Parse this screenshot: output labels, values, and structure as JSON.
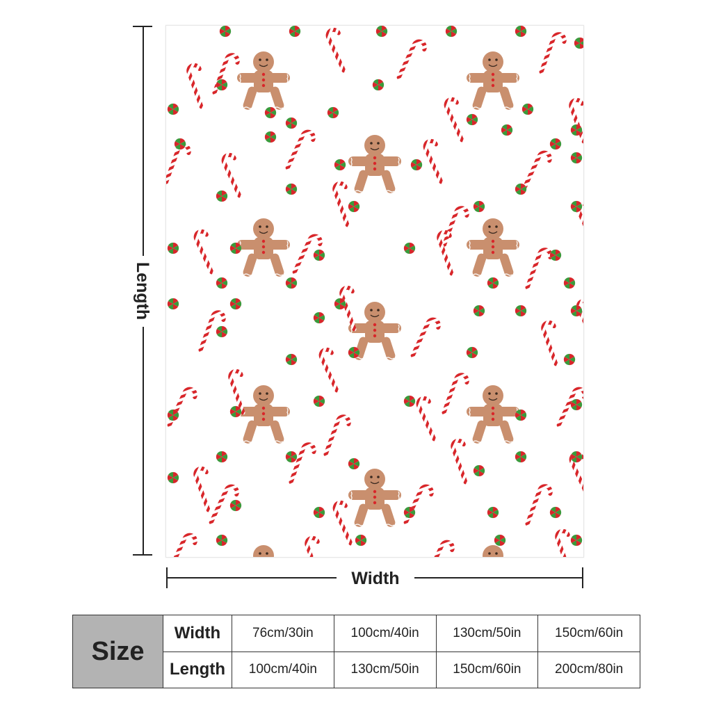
{
  "product": {
    "pattern_name": "gingerbread-candy-cane-pattern",
    "colors": {
      "cookie": "#c98f6e",
      "cane_red": "#d8262a",
      "mint_green": "#3a9a3a",
      "background": "#ffffff"
    }
  },
  "dimensions": {
    "length_label": "Length",
    "width_label": "Width"
  },
  "size_table": {
    "header": "Size",
    "rows": [
      {
        "label": "Width",
        "values": [
          "76cm/30in",
          "100cm/40in",
          "130cm/50in",
          "150cm/60in"
        ]
      },
      {
        "label": "Length",
        "values": [
          "100cm/40in",
          "130cm/50in",
          "150cm/60in",
          "200cm/80in"
        ]
      }
    ]
  }
}
